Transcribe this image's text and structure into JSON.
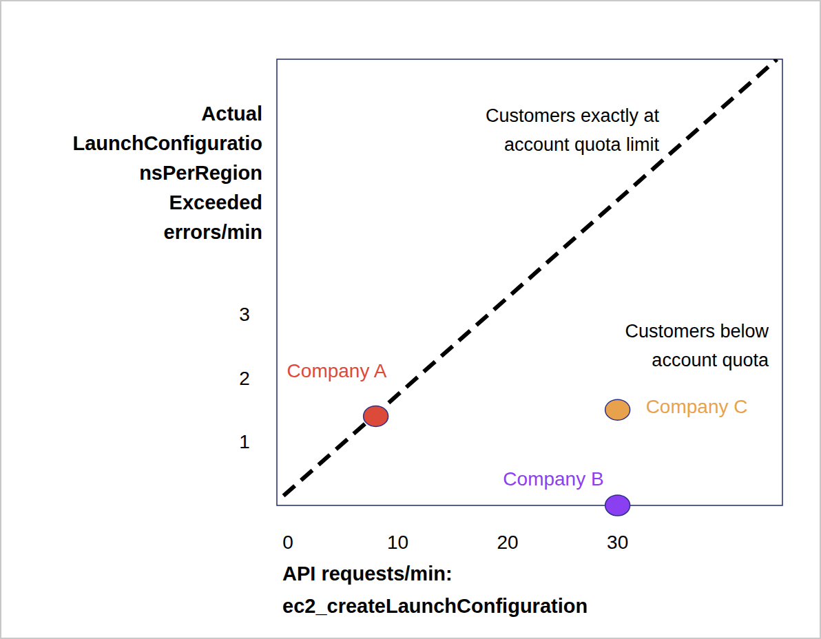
{
  "chart_data": {
    "type": "scatter",
    "x_label": [
      "API requests/min:",
      "ec2_createLaunchConfiguration"
    ],
    "y_label": [
      "Actual",
      "LaunchConfiguratio",
      "nsPerRegion",
      "Exceeded",
      "errors/min"
    ],
    "xlim": [
      -1,
      45
    ],
    "ylim": [
      0,
      7
    ],
    "xticks": [
      0,
      10,
      20,
      30
    ],
    "yticks": [
      1,
      2,
      3
    ],
    "grid": false,
    "annotations": [
      {
        "lines": [
          "Customers exactly at",
          "account quota limit"
        ]
      },
      {
        "lines": [
          "Customers below",
          "account quota"
        ]
      }
    ],
    "series": [
      {
        "type": "line",
        "line_style": "dashed",
        "color": "#000000",
        "x": [
          -0.4,
          44.5
        ],
        "values": [
          0.15,
          7
        ]
      },
      {
        "name": "Company A",
        "type": "scatter",
        "marker": "circle",
        "color": "#dc4a3a",
        "x": [
          8
        ],
        "values": [
          1.4
        ]
      },
      {
        "name": "Company B",
        "type": "scatter",
        "marker": "circle",
        "color": "#8a3ff0",
        "x": [
          30
        ],
        "values": [
          0
        ]
      },
      {
        "name": "Company C",
        "type": "scatter",
        "marker": "circle",
        "color": "#e8a24e",
        "x": [
          30
        ],
        "values": [
          1.5
        ]
      }
    ]
  }
}
